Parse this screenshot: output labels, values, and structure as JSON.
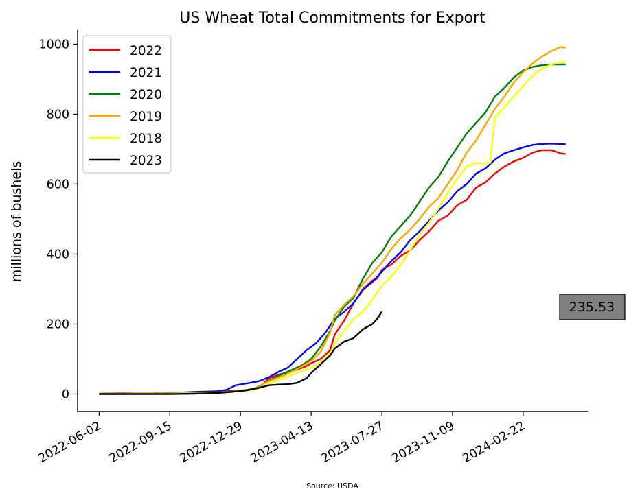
{
  "chart_data": {
    "type": "line",
    "title": "US Wheat Total Commitments for Export",
    "xlabel": "",
    "ylabel": "millions of bushels",
    "source": "Source: USDA",
    "x_ticks": [
      "2022-06-02",
      "2022-09-15",
      "2022-12-29",
      "2023-04-13",
      "2023-07-27",
      "2023-11-09",
      "2024-02-22"
    ],
    "y_ticks": [
      0,
      200,
      400,
      600,
      800,
      1000
    ],
    "xlim": [
      "2022-05-01",
      "2024-05-29"
    ],
    "ylim": [
      -50,
      1040
    ],
    "legend_position": "top-left",
    "grid": false,
    "last_value_label": "235.53",
    "series": [
      {
        "name": "2022",
        "color": "#ff0000",
        "points": [
          [
            "2022-06-02",
            1
          ],
          [
            "2022-07-07",
            2
          ],
          [
            "2022-08-11",
            2
          ],
          [
            "2022-09-15",
            3
          ],
          [
            "2022-10-20",
            4
          ],
          [
            "2022-11-24",
            5
          ],
          [
            "2022-12-08",
            8
          ],
          [
            "2022-12-29",
            10
          ],
          [
            "2023-01-19",
            13
          ],
          [
            "2023-01-26",
            18
          ],
          [
            "2023-02-09",
            45
          ],
          [
            "2023-02-23",
            55
          ],
          [
            "2023-03-09",
            62
          ],
          [
            "2023-03-23",
            70
          ],
          [
            "2023-04-06",
            80
          ],
          [
            "2023-04-13",
            88
          ],
          [
            "2023-04-27",
            100
          ],
          [
            "2023-05-11",
            125
          ],
          [
            "2023-05-18",
            170
          ],
          [
            "2023-06-01",
            210
          ],
          [
            "2023-06-15",
            260
          ],
          [
            "2023-06-29",
            300
          ],
          [
            "2023-07-13",
            325
          ],
          [
            "2023-07-20",
            330
          ],
          [
            "2023-07-27",
            355
          ],
          [
            "2023-08-10",
            370
          ],
          [
            "2023-08-24",
            395
          ],
          [
            "2023-09-07",
            410
          ],
          [
            "2023-09-21",
            440
          ],
          [
            "2023-10-05",
            465
          ],
          [
            "2023-10-19",
            495
          ],
          [
            "2023-11-02",
            510
          ],
          [
            "2023-11-16",
            540
          ],
          [
            "2023-11-30",
            555
          ],
          [
            "2023-12-14",
            590
          ],
          [
            "2023-12-28",
            605
          ],
          [
            "2024-01-11",
            630
          ],
          [
            "2024-01-25",
            650
          ],
          [
            "2024-02-08",
            665
          ],
          [
            "2024-02-22",
            675
          ],
          [
            "2024-03-07",
            690
          ],
          [
            "2024-03-21",
            697
          ],
          [
            "2024-04-04",
            697
          ],
          [
            "2024-04-18",
            688
          ],
          [
            "2024-04-25",
            686
          ]
        ]
      },
      {
        "name": "2021",
        "color": "#0000ff",
        "points": [
          [
            "2022-06-02",
            0
          ],
          [
            "2022-07-07",
            0
          ],
          [
            "2022-08-11",
            1
          ],
          [
            "2022-09-15",
            3
          ],
          [
            "2022-10-20",
            6
          ],
          [
            "2022-11-24",
            8
          ],
          [
            "2022-12-08",
            12
          ],
          [
            "2022-12-22",
            25
          ],
          [
            "2023-01-12",
            32
          ],
          [
            "2023-01-26",
            37
          ],
          [
            "2023-02-09",
            48
          ],
          [
            "2023-02-23",
            63
          ],
          [
            "2023-03-09",
            75
          ],
          [
            "2023-03-23",
            100
          ],
          [
            "2023-04-06",
            125
          ],
          [
            "2023-04-20",
            145
          ],
          [
            "2023-05-04",
            175
          ],
          [
            "2023-05-18",
            215
          ],
          [
            "2023-06-01",
            235
          ],
          [
            "2023-06-15",
            260
          ],
          [
            "2023-06-29",
            298
          ],
          [
            "2023-07-13",
            320
          ],
          [
            "2023-07-27",
            350
          ],
          [
            "2023-08-10",
            380
          ],
          [
            "2023-08-24",
            405
          ],
          [
            "2023-09-07",
            440
          ],
          [
            "2023-09-21",
            465
          ],
          [
            "2023-10-05",
            495
          ],
          [
            "2023-10-19",
            525
          ],
          [
            "2023-11-02",
            548
          ],
          [
            "2023-11-16",
            580
          ],
          [
            "2023-11-30",
            600
          ],
          [
            "2023-12-14",
            630
          ],
          [
            "2023-12-28",
            645
          ],
          [
            "2024-01-11",
            670
          ],
          [
            "2024-01-25",
            688
          ],
          [
            "2024-02-08",
            697
          ],
          [
            "2024-02-22",
            705
          ],
          [
            "2024-03-07",
            712
          ],
          [
            "2024-03-21",
            715
          ],
          [
            "2024-04-04",
            716
          ],
          [
            "2024-04-25",
            714
          ]
        ]
      },
      {
        "name": "2020",
        "color": "#008000",
        "points": [
          [
            "2022-06-02",
            0
          ],
          [
            "2022-07-07",
            1
          ],
          [
            "2022-08-11",
            1
          ],
          [
            "2022-09-15",
            2
          ],
          [
            "2022-10-20",
            4
          ],
          [
            "2022-11-24",
            5
          ],
          [
            "2022-12-15",
            7
          ],
          [
            "2022-12-29",
            10
          ],
          [
            "2023-01-19",
            15
          ],
          [
            "2023-02-02",
            30
          ],
          [
            "2023-02-16",
            45
          ],
          [
            "2023-03-02",
            58
          ],
          [
            "2023-03-16",
            70
          ],
          [
            "2023-03-30",
            82
          ],
          [
            "2023-04-13",
            100
          ],
          [
            "2023-04-27",
            135
          ],
          [
            "2023-05-11",
            180
          ],
          [
            "2023-05-18",
            210
          ],
          [
            "2023-06-01",
            250
          ],
          [
            "2023-06-15",
            275
          ],
          [
            "2023-06-29",
            330
          ],
          [
            "2023-07-13",
            375
          ],
          [
            "2023-07-27",
            405
          ],
          [
            "2023-08-10",
            450
          ],
          [
            "2023-08-24",
            480
          ],
          [
            "2023-09-07",
            510
          ],
          [
            "2023-09-21",
            550
          ],
          [
            "2023-10-05",
            590
          ],
          [
            "2023-10-19",
            620
          ],
          [
            "2023-11-02",
            665
          ],
          [
            "2023-11-16",
            705
          ],
          [
            "2023-11-30",
            745
          ],
          [
            "2023-12-14",
            775
          ],
          [
            "2023-12-28",
            805
          ],
          [
            "2024-01-11",
            850
          ],
          [
            "2024-01-25",
            875
          ],
          [
            "2024-02-08",
            905
          ],
          [
            "2024-02-22",
            925
          ],
          [
            "2024-03-07",
            935
          ],
          [
            "2024-03-21",
            940
          ],
          [
            "2024-04-04",
            942
          ],
          [
            "2024-04-25",
            942
          ]
        ]
      },
      {
        "name": "2019",
        "color": "#ffa500",
        "points": [
          [
            "2022-06-02",
            0
          ],
          [
            "2022-07-07",
            1
          ],
          [
            "2022-08-11",
            2
          ],
          [
            "2022-09-15",
            2
          ],
          [
            "2022-10-20",
            3
          ],
          [
            "2022-11-24",
            4
          ],
          [
            "2022-12-15",
            6
          ],
          [
            "2022-12-29",
            10
          ],
          [
            "2023-01-19",
            13
          ],
          [
            "2023-02-02",
            30
          ],
          [
            "2023-02-16",
            42
          ],
          [
            "2023-03-02",
            52
          ],
          [
            "2023-03-16",
            65
          ],
          [
            "2023-03-30",
            78
          ],
          [
            "2023-04-13",
            95
          ],
          [
            "2023-04-27",
            120
          ],
          [
            "2023-05-11",
            175
          ],
          [
            "2023-05-18",
            225
          ],
          [
            "2023-06-01",
            255
          ],
          [
            "2023-06-15",
            280
          ],
          [
            "2023-06-29",
            315
          ],
          [
            "2023-07-13",
            345
          ],
          [
            "2023-07-27",
            375
          ],
          [
            "2023-08-10",
            415
          ],
          [
            "2023-08-24",
            445
          ],
          [
            "2023-09-07",
            470
          ],
          [
            "2023-09-21",
            500
          ],
          [
            "2023-10-05",
            535
          ],
          [
            "2023-10-19",
            560
          ],
          [
            "2023-11-02",
            600
          ],
          [
            "2023-11-16",
            640
          ],
          [
            "2023-11-30",
            690
          ],
          [
            "2023-12-14",
            725
          ],
          [
            "2023-12-28",
            770
          ],
          [
            "2024-01-11",
            815
          ],
          [
            "2024-01-25",
            850
          ],
          [
            "2024-02-08",
            890
          ],
          [
            "2024-02-22",
            920
          ],
          [
            "2024-03-07",
            945
          ],
          [
            "2024-03-21",
            965
          ],
          [
            "2024-04-04",
            980
          ],
          [
            "2024-04-18",
            992
          ],
          [
            "2024-04-25",
            990
          ]
        ]
      },
      {
        "name": "2018",
        "color": "#ffff00",
        "points": [
          [
            "2022-06-02",
            0
          ],
          [
            "2022-07-07",
            0
          ],
          [
            "2022-08-11",
            1
          ],
          [
            "2022-09-15",
            1
          ],
          [
            "2022-10-20",
            2
          ],
          [
            "2022-11-24",
            3
          ],
          [
            "2022-12-15",
            5
          ],
          [
            "2022-12-29",
            8
          ],
          [
            "2023-01-19",
            12
          ],
          [
            "2023-02-02",
            22
          ],
          [
            "2023-02-16",
            35
          ],
          [
            "2023-03-02",
            45
          ],
          [
            "2023-03-16",
            55
          ],
          [
            "2023-03-30",
            65
          ],
          [
            "2023-04-13",
            75
          ],
          [
            "2023-04-27",
            90
          ],
          [
            "2023-05-11",
            115
          ],
          [
            "2023-05-18",
            145
          ],
          [
            "2023-06-01",
            180
          ],
          [
            "2023-06-15",
            215
          ],
          [
            "2023-06-29",
            235
          ],
          [
            "2023-07-13",
            270
          ],
          [
            "2023-07-27",
            310
          ],
          [
            "2023-08-10",
            335
          ],
          [
            "2023-08-24",
            370
          ],
          [
            "2023-09-07",
            410
          ],
          [
            "2023-09-21",
            455
          ],
          [
            "2023-10-05",
            490
          ],
          [
            "2023-10-19",
            530
          ],
          [
            "2023-11-02",
            575
          ],
          [
            "2023-11-16",
            615
          ],
          [
            "2023-11-30",
            650
          ],
          [
            "2023-12-14",
            660
          ],
          [
            "2023-12-28",
            660
          ],
          [
            "2024-01-04",
            660
          ],
          [
            "2024-01-11",
            790
          ],
          [
            "2024-01-25",
            820
          ],
          [
            "2024-02-08",
            850
          ],
          [
            "2024-02-22",
            880
          ],
          [
            "2024-03-07",
            910
          ],
          [
            "2024-03-21",
            930
          ],
          [
            "2024-04-04",
            942
          ],
          [
            "2024-04-25",
            950
          ]
        ]
      },
      {
        "name": "2023",
        "color": "#000000",
        "points": [
          [
            "2022-06-02",
            0
          ],
          [
            "2022-07-07",
            0
          ],
          [
            "2022-08-11",
            0
          ],
          [
            "2022-09-15",
            0
          ],
          [
            "2022-10-20",
            1
          ],
          [
            "2022-11-24",
            3
          ],
          [
            "2022-12-15",
            6
          ],
          [
            "2023-01-05",
            10
          ],
          [
            "2023-01-26",
            18
          ],
          [
            "2023-02-09",
            25
          ],
          [
            "2023-02-23",
            27
          ],
          [
            "2023-03-09",
            28
          ],
          [
            "2023-03-23",
            32
          ],
          [
            "2023-04-06",
            45
          ],
          [
            "2023-04-13",
            60
          ],
          [
            "2023-04-27",
            85
          ],
          [
            "2023-05-11",
            110
          ],
          [
            "2023-05-18",
            130
          ],
          [
            "2023-06-01",
            150
          ],
          [
            "2023-06-15",
            160
          ],
          [
            "2023-06-29",
            185
          ],
          [
            "2023-07-13",
            200
          ],
          [
            "2023-07-20",
            215
          ],
          [
            "2023-07-27",
            235.53
          ]
        ]
      }
    ]
  }
}
